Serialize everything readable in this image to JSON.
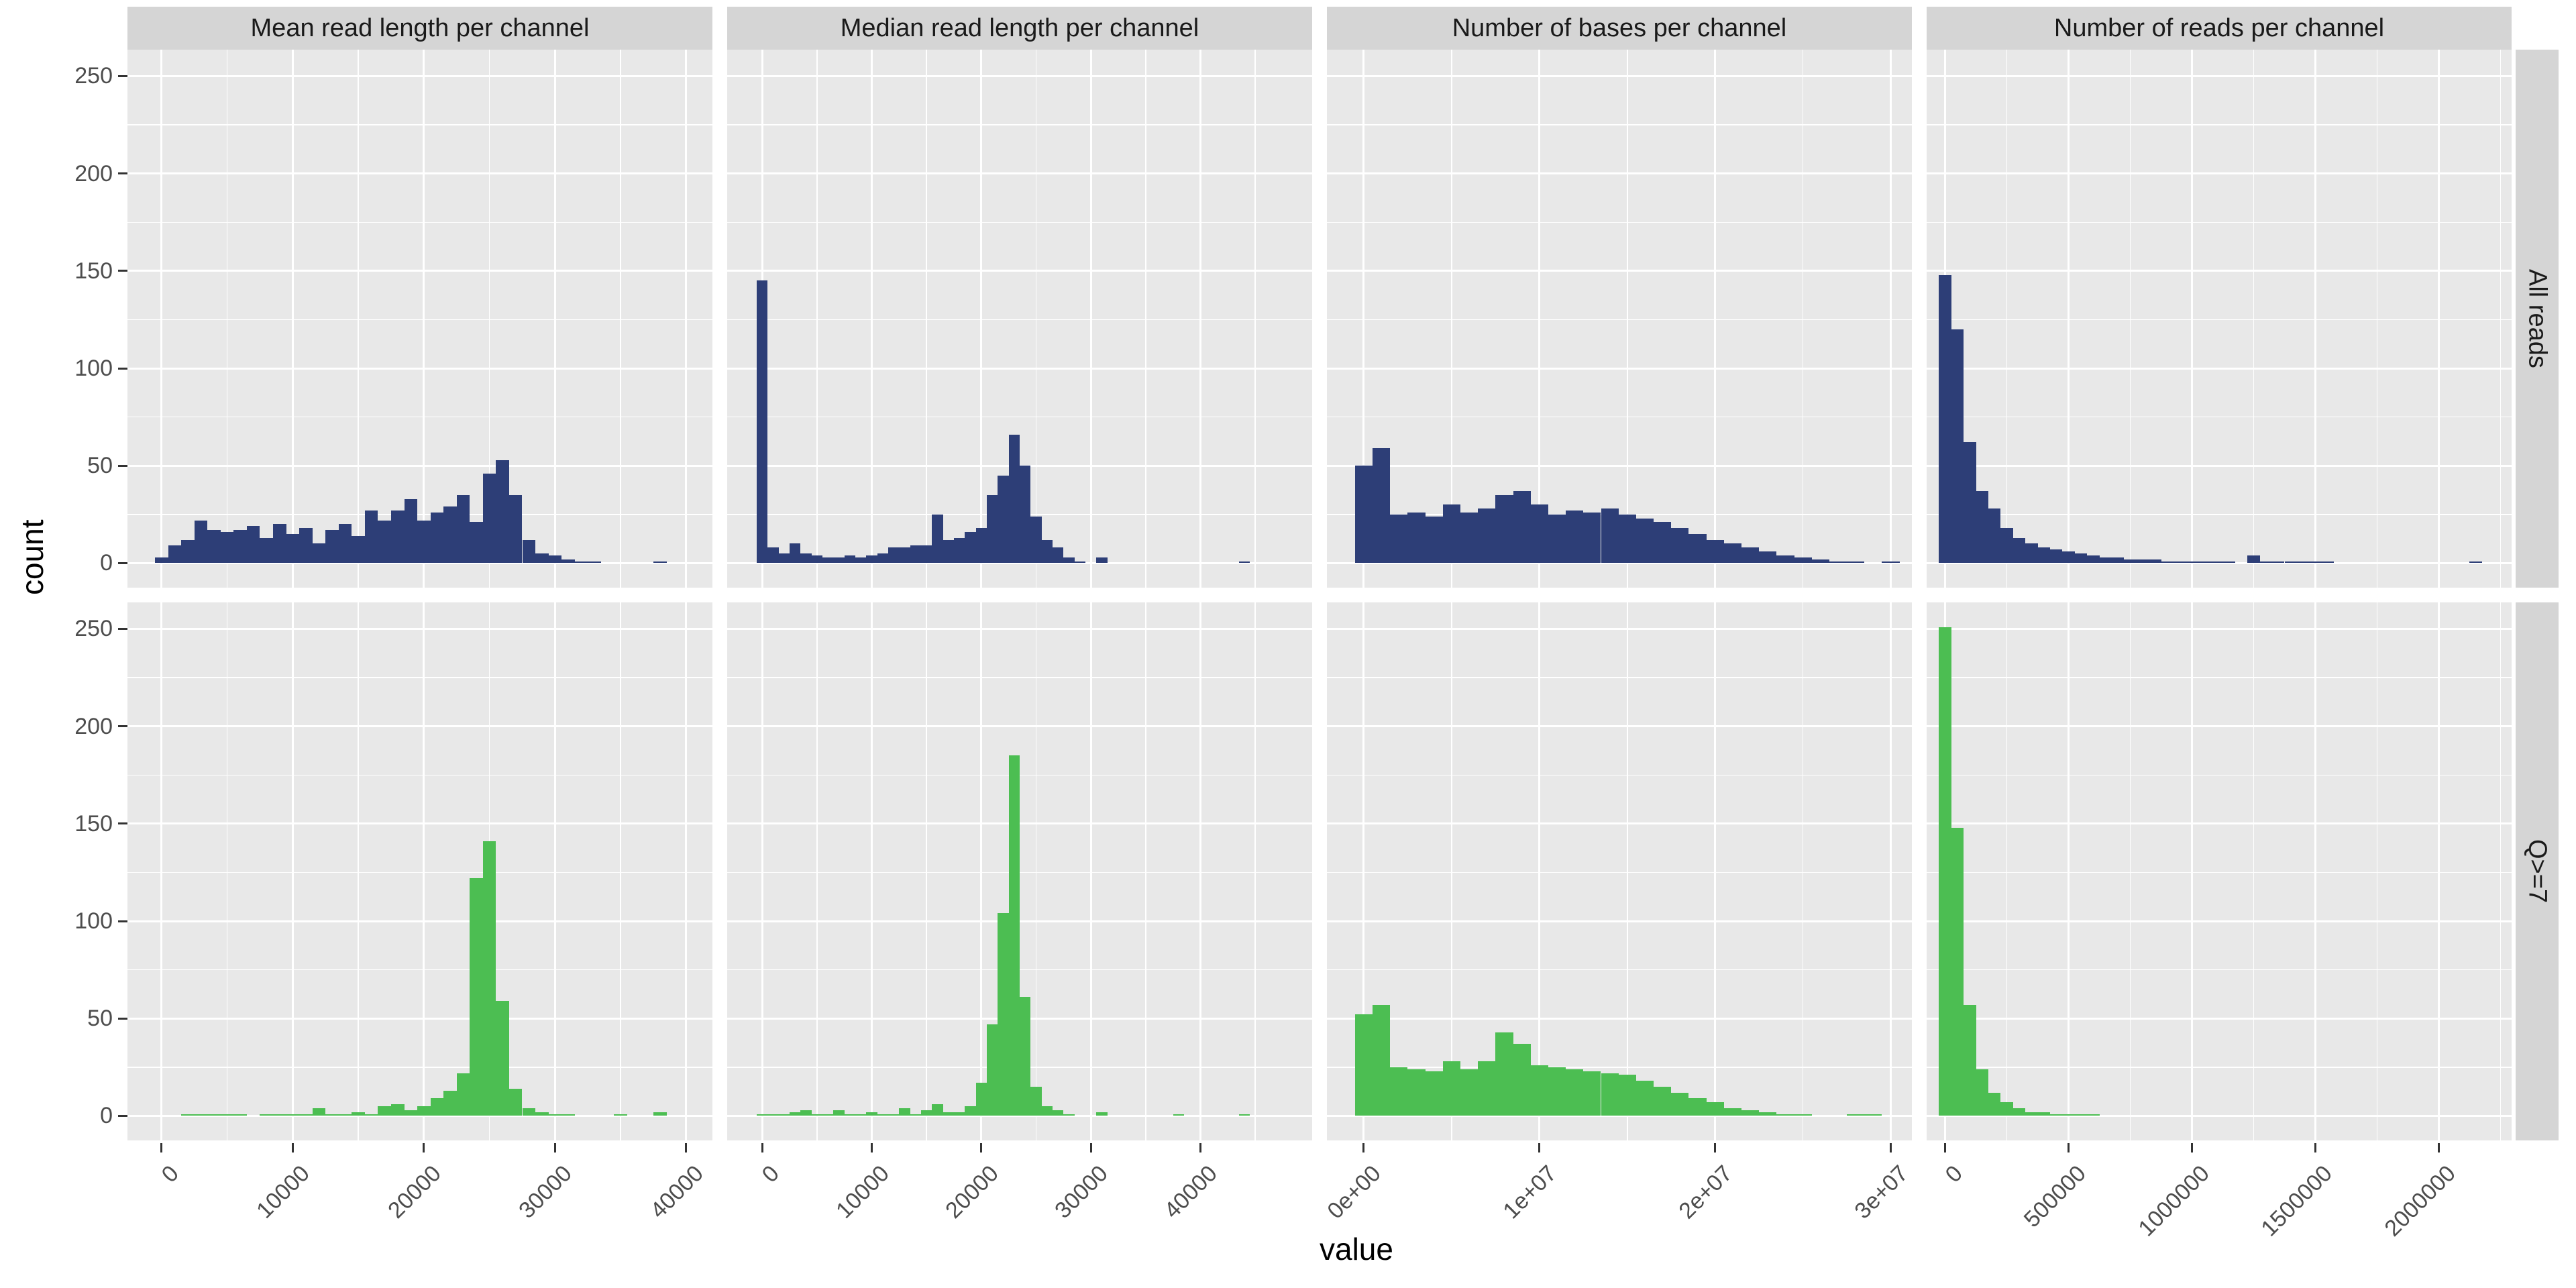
{
  "chart_data": {
    "type": "bar",
    "subtype": "faceted-histogram-grid",
    "x_title": "value",
    "y_title": "count",
    "legend_position": "none",
    "grid": "on",
    "row_facets": [
      "All reads",
      "Q>=7"
    ],
    "col_facets": [
      "Mean read length per channel",
      "Median read length per channel",
      "Number of bases per channel",
      "Number of reads per channel"
    ],
    "y_axis": {
      "range": [
        -12.6,
        263.6
      ],
      "major_ticks": [
        0,
        50,
        100,
        150,
        200,
        250
      ],
      "minor_ticks": [
        25,
        75,
        125,
        175,
        225
      ]
    },
    "panels": [
      {
        "col_label": "Mean read length per channel",
        "x_range": [
          -2600,
          42000
        ],
        "binwidth": 1000,
        "first_bin_center": 0,
        "x_major_ticks": [
          {
            "value": 0,
            "label": "0"
          },
          {
            "value": 10000,
            "label": "10000"
          },
          {
            "value": 20000,
            "label": "20000"
          },
          {
            "value": 30000,
            "label": "30000"
          },
          {
            "value": 40000,
            "label": "40000"
          }
        ],
        "x_minor_ticks": [
          5000,
          15000,
          25000,
          35000
        ],
        "counts": {
          "All reads": [
            3,
            9,
            12,
            22,
            17,
            16,
            17,
            19,
            13,
            20,
            15,
            18,
            10,
            17,
            20,
            14,
            27,
            22,
            27,
            33,
            22,
            26,
            29,
            35,
            21,
            46,
            53,
            35,
            12,
            5,
            4,
            2,
            1,
            1,
            0,
            0,
            0,
            0,
            1
          ],
          "Q>=7": [
            0,
            0,
            1,
            1,
            1,
            1,
            1,
            0,
            1,
            1,
            1,
            1,
            4,
            1,
            1,
            2,
            1,
            5,
            6,
            3,
            5,
            9,
            13,
            22,
            122,
            141,
            59,
            14,
            4,
            2,
            1,
            1,
            0,
            0,
            0,
            1,
            0,
            0,
            2
          ]
        }
      },
      {
        "col_label": "Median read length per channel",
        "x_range": [
          -3200,
          50200
        ],
        "binwidth": 1000,
        "first_bin_center": 0,
        "x_major_ticks": [
          {
            "value": 0,
            "label": "0"
          },
          {
            "value": 10000,
            "label": "10000"
          },
          {
            "value": 20000,
            "label": "20000"
          },
          {
            "value": 30000,
            "label": "30000"
          },
          {
            "value": 40000,
            "label": "40000"
          }
        ],
        "x_minor_ticks": [
          5000,
          15000,
          25000,
          35000,
          45000
        ],
        "counts": {
          "All reads": [
            145,
            8,
            5,
            10,
            5,
            4,
            3,
            3,
            4,
            3,
            4,
            5,
            8,
            8,
            9,
            9,
            25,
            12,
            13,
            16,
            18,
            35,
            45,
            66,
            50,
            24,
            12,
            8,
            3,
            1,
            0,
            3,
            0,
            0,
            0,
            0,
            0,
            0,
            0,
            0,
            0,
            0,
            0,
            0,
            1
          ],
          "Q>=7": [
            1,
            1,
            1,
            2,
            3,
            1,
            1,
            3,
            1,
            1,
            2,
            1,
            1,
            4,
            1,
            3,
            6,
            2,
            2,
            5,
            17,
            47,
            104,
            185,
            61,
            15,
            5,
            3,
            1,
            0,
            0,
            2,
            0,
            0,
            0,
            0,
            0,
            0,
            1,
            0,
            0,
            0,
            0,
            0,
            1
          ]
        }
      },
      {
        "col_label": "Number of bases per channel",
        "x_range": [
          -2100000,
          31200000
        ],
        "binwidth": 1000000,
        "first_bin_center": 0,
        "x_major_ticks": [
          {
            "value": 0,
            "label": "0e+00"
          },
          {
            "value": 10000000,
            "label": "1e+07"
          },
          {
            "value": 20000000,
            "label": "2e+07"
          },
          {
            "value": 30000000,
            "label": "3e+07"
          }
        ],
        "x_minor_ticks": [
          5000000,
          15000000,
          25000000
        ],
        "counts": {
          "All reads": [
            50,
            59,
            25,
            26,
            24,
            30,
            26,
            28,
            35,
            37,
            30,
            25,
            27,
            26,
            28,
            25,
            23,
            21,
            18,
            15,
            12,
            10,
            8,
            6,
            4,
            3,
            2,
            1,
            1,
            0,
            1
          ],
          "Q>=7": [
            52,
            57,
            25,
            24,
            23,
            28,
            24,
            28,
            43,
            37,
            26,
            25,
            24,
            23,
            22,
            21,
            18,
            15,
            12,
            9,
            7,
            4,
            3,
            2,
            1,
            1,
            0,
            0,
            1,
            1,
            0
          ]
        }
      },
      {
        "col_label": "Number of reads per channel",
        "x_range": [
          -75000,
          2295000
        ],
        "binwidth": 50000,
        "first_bin_center": 0,
        "x_major_ticks": [
          {
            "value": 0,
            "label": "0"
          },
          {
            "value": 500000,
            "label": "500000"
          },
          {
            "value": 1000000,
            "label": "1000000"
          },
          {
            "value": 1500000,
            "label": "1500000"
          },
          {
            "value": 2000000,
            "label": "2000000"
          }
        ],
        "x_minor_ticks": [
          250000,
          750000,
          1250000,
          1750000,
          2250000
        ],
        "counts": {
          "All reads": [
            148,
            120,
            62,
            37,
            28,
            18,
            13,
            10,
            8,
            7,
            6,
            5,
            4,
            3,
            3,
            2,
            2,
            2,
            1,
            1,
            1,
            1,
            1,
            1,
            0,
            4,
            1,
            1,
            1,
            1,
            1,
            1,
            0,
            0,
            0,
            0,
            0,
            0,
            0,
            0,
            0,
            0,
            0,
            1,
            0
          ],
          "Q>=7": [
            251,
            148,
            57,
            24,
            12,
            7,
            4,
            2,
            2,
            1,
            1,
            1,
            1,
            0,
            0,
            0,
            0,
            0,
            0,
            0,
            0,
            0,
            0,
            0,
            0,
            0,
            0,
            0,
            0,
            0,
            0,
            0,
            0,
            0,
            0,
            0,
            0,
            0,
            0,
            0,
            0,
            0,
            0,
            0,
            0
          ]
        }
      }
    ]
  },
  "style": {
    "series_colors": {
      "All reads": "#2d3e77",
      "Q>=7": "#4cbe52"
    },
    "panel_bg": "#e8e8e8",
    "strip_bg": "#d5d5d5",
    "grid_color": "#ffffff",
    "tick_label_color": "#4d4d4d"
  }
}
